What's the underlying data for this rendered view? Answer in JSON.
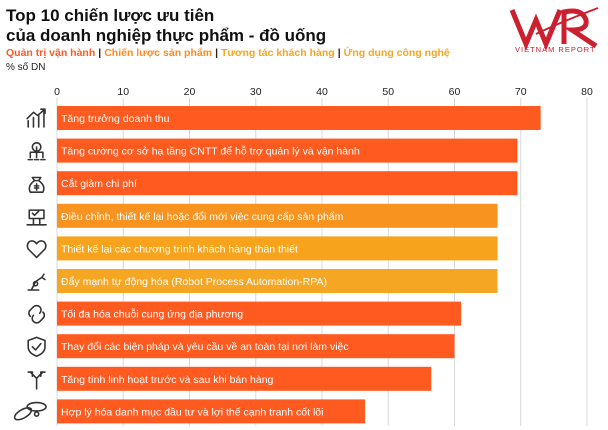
{
  "header": {
    "title_line1": "Top 10 chiến lược ưu tiên",
    "title_line2": "của doanh nghiệp thực phẩm - đồ uống",
    "unit": "% số DN"
  },
  "legend": [
    {
      "label": "Quản trị vận hành",
      "color": "#ff5a1f"
    },
    {
      "label": "Chiến lược sản phẩm",
      "color": "#ff8a1e"
    },
    {
      "label": "Tương tác khách hàng",
      "color": "#f7a41c"
    },
    {
      "label": "Ứng dụng công nghệ",
      "color": "#f5a623"
    }
  ],
  "logo": {
    "text": "VIETNAM REPORT"
  },
  "icons": [
    "growth-chart-icon",
    "it-infrastructure-icon",
    "money-bag-icon",
    "supply-adjust-icon",
    "heart-icon",
    "robot-arm-icon",
    "chain-link-icon",
    "shield-check-icon",
    "flexible-arrows-icon",
    "portfolio-atom-icon"
  ],
  "chart_data": {
    "type": "bar",
    "orientation": "horizontal",
    "xlim": [
      0,
      80
    ],
    "ticks": [
      0,
      10,
      20,
      30,
      40,
      50,
      60,
      70,
      80
    ],
    "grid": true,
    "categories": [
      "Tăng trưởng doanh thu",
      "Tăng cường cơ sở hạ tầng CNTT để hỗ trợ quản lý và vận hành",
      "Cắt giảm chi phí",
      "Điều chỉnh, thiết kế lại hoặc đổi mới việc cung cấp sản phẩm",
      "Thiết kế lại các chương trình khách hàng thân thiết",
      "Đẩy mạnh tự động hóa (Robot Process Automation-RPA)",
      "Tối đa hóa chuỗi cung ứng địa phương",
      "Thay đổi các biện pháp và yêu cầu về an toàn tại nơi làm việc",
      "Tăng tính linh hoạt trước và sau khi bán hàng",
      "Hợp lý hóa danh mục đầu tư và lợi thế cạnh tranh cốt lõi"
    ],
    "values": [
      73,
      69.5,
      69.5,
      66.5,
      66.5,
      66.5,
      61,
      60,
      56.5,
      46.5
    ],
    "colors": [
      "#ff5a1f",
      "#ff5a1f",
      "#ff5a1f",
      "#f7931e",
      "#f7a41c",
      "#f5a623",
      "#ff5a1f",
      "#ff5a1f",
      "#ff5a1f",
      "#ff5a1f"
    ]
  }
}
